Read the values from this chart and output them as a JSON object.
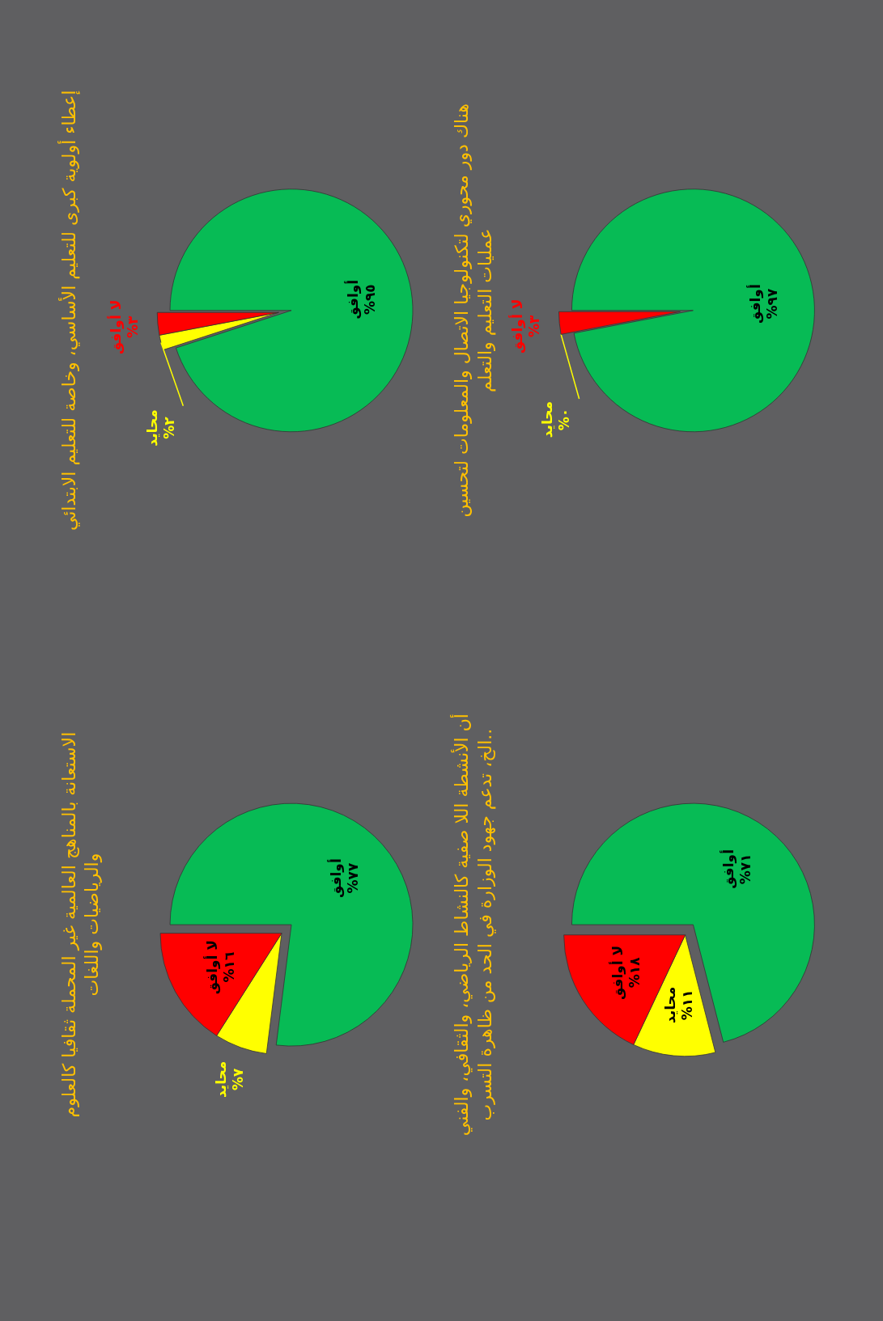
{
  "chart_data": [
    {
      "type": "pie",
      "title": "إعطاء  أولوية كبرى  للتعليم الأساسي، وخاصة للتعليم الابتدائي",
      "categories": [
        "أوافق",
        "محايد",
        "لا أوافق"
      ],
      "values": [
        95,
        2,
        3
      ],
      "colors": [
        "#07bb55",
        "#ffff00",
        "#ff0000"
      ],
      "value_labels": [
        "٩٥%",
        "٢%",
        "٣%"
      ]
    },
    {
      "type": "pie",
      "title": "الاستعانة بالمناهج العالمية غير المحملة ثقافيا كالعلوم والرياضيات واللغات",
      "categories": [
        "أوافق",
        "محايد",
        "لا أوافق"
      ],
      "values": [
        77,
        7,
        16
      ],
      "colors": [
        "#07bb55",
        "#ffff00",
        "#ff0000"
      ],
      "value_labels": [
        "٧٧%",
        "٧%",
        "١٦%"
      ]
    },
    {
      "type": "pie",
      "title": "هناك دور محوري لتكنولوجيا الاتصال والمعلومات لتحسين عمليات التعليم والتعلم",
      "categories": [
        "أوافق",
        "محايد",
        "لا أوافق"
      ],
      "values": [
        97,
        0,
        3
      ],
      "colors": [
        "#07bb55",
        "#ffff00",
        "#ff0000"
      ],
      "value_labels": [
        "٩٧%",
        "٠%",
        "٣%"
      ]
    },
    {
      "type": "pie",
      "title": "أن الأنشطة اللا صفية كالنشاط الرياضي، والثقافي، والفني ..الخ، تدعم جهود الوزارة في الحد من ظاهرة التسرب",
      "categories": [
        "أوافق",
        "محايد",
        "لا أوافق"
      ],
      "values": [
        71,
        11,
        18
      ],
      "colors": [
        "#07bb55",
        "#ffff00",
        "#ff0000"
      ],
      "value_labels": [
        "٧١%",
        "١١%",
        "١٨%"
      ]
    }
  ]
}
